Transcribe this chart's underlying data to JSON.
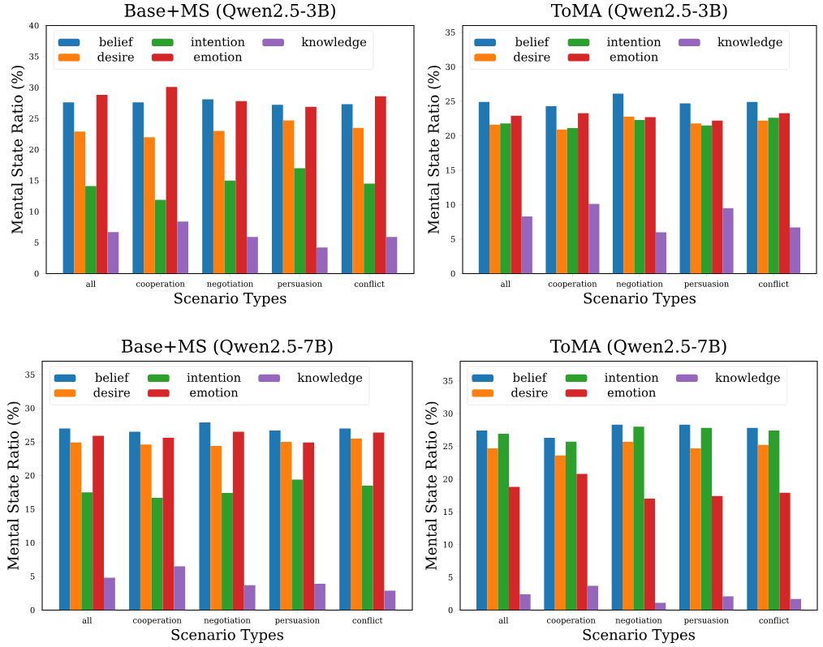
{
  "chart_data": [
    {
      "type": "bar",
      "title": "Base+MS (Qwen2.5-3B)",
      "xlabel": "Scenario Types",
      "ylabel": "Mental State Ratio (%)",
      "categories": [
        "all",
        "cooperation",
        "negotiation",
        "persuasion",
        "conflict"
      ],
      "ylim": [
        0,
        40
      ],
      "yticks": [
        0,
        5,
        10,
        15,
        20,
        25,
        30,
        35,
        40
      ],
      "legend": "top left",
      "series": [
        {
          "name": "belief",
          "color": "#1f77b4",
          "values": [
            27.6,
            27.6,
            28.1,
            27.2,
            27.3
          ]
        },
        {
          "name": "desire",
          "color": "#ff7f0e",
          "values": [
            22.9,
            22.0,
            23.0,
            24.7,
            23.5
          ]
        },
        {
          "name": "intention",
          "color": "#2ca02c",
          "values": [
            14.1,
            11.9,
            15.0,
            17.0,
            14.5
          ]
        },
        {
          "name": "emotion",
          "color": "#d62728",
          "values": [
            28.8,
            30.1,
            27.8,
            26.9,
            28.6
          ]
        },
        {
          "name": "knowledge",
          "color": "#9467bd",
          "values": [
            6.7,
            8.4,
            5.9,
            4.2,
            5.9
          ]
        }
      ]
    },
    {
      "type": "bar",
      "title": "ToMA (Qwen2.5-3B)",
      "xlabel": "Scenario Types",
      "ylabel": "Mental State Ratio (%)",
      "categories": [
        "all",
        "cooperation",
        "negotiation",
        "persuasion",
        "conflict"
      ],
      "ylim": [
        0,
        36
      ],
      "yticks": [
        0,
        5,
        10,
        15,
        20,
        25,
        30,
        35
      ],
      "legend": "top left",
      "series": [
        {
          "name": "belief",
          "color": "#1f77b4",
          "values": [
            24.9,
            24.3,
            26.1,
            24.7,
            24.9
          ]
        },
        {
          "name": "desire",
          "color": "#ff7f0e",
          "values": [
            21.6,
            20.9,
            22.8,
            21.8,
            22.2
          ]
        },
        {
          "name": "intention",
          "color": "#2ca02c",
          "values": [
            21.8,
            21.1,
            22.3,
            21.5,
            22.6
          ]
        },
        {
          "name": "emotion",
          "color": "#d62728",
          "values": [
            22.9,
            23.3,
            22.7,
            22.2,
            23.3
          ]
        },
        {
          "name": "knowledge",
          "color": "#9467bd",
          "values": [
            8.3,
            10.1,
            6.0,
            9.5,
            6.7
          ]
        }
      ]
    },
    {
      "type": "bar",
      "title": "Base+MS (Qwen2.5-7B)",
      "xlabel": "Scenario Types",
      "ylabel": "Mental State Ratio (%)",
      "categories": [
        "all",
        "cooperation",
        "negotiation",
        "persuasion",
        "conflict"
      ],
      "ylim": [
        0,
        37
      ],
      "yticks": [
        0,
        5,
        10,
        15,
        20,
        25,
        30,
        35
      ],
      "legend": "top left",
      "series": [
        {
          "name": "belief",
          "color": "#1f77b4",
          "values": [
            27.0,
            26.5,
            27.9,
            26.7,
            27.0
          ]
        },
        {
          "name": "desire",
          "color": "#ff7f0e",
          "values": [
            24.9,
            24.6,
            24.4,
            25.0,
            25.5
          ]
        },
        {
          "name": "intention",
          "color": "#2ca02c",
          "values": [
            17.5,
            16.7,
            17.4,
            19.4,
            18.5
          ]
        },
        {
          "name": "emotion",
          "color": "#d62728",
          "values": [
            25.9,
            25.6,
            26.5,
            24.9,
            26.4
          ]
        },
        {
          "name": "knowledge",
          "color": "#9467bd",
          "values": [
            4.8,
            6.5,
            3.7,
            3.9,
            2.9
          ]
        }
      ]
    },
    {
      "type": "bar",
      "title": "ToMA (Qwen2.5-7B)",
      "xlabel": "Scenario Types",
      "ylabel": "Mental State Ratio (%)",
      "categories": [
        "all",
        "cooperation",
        "negotiation",
        "persuasion",
        "conflict"
      ],
      "ylim": [
        0,
        38
      ],
      "yticks": [
        0,
        5,
        10,
        15,
        20,
        25,
        30,
        35
      ],
      "legend": "top left",
      "series": [
        {
          "name": "belief",
          "color": "#1f77b4",
          "values": [
            27.4,
            26.3,
            28.3,
            28.3,
            27.8
          ]
        },
        {
          "name": "desire",
          "color": "#ff7f0e",
          "values": [
            24.7,
            23.6,
            25.7,
            24.7,
            25.2
          ]
        },
        {
          "name": "intention",
          "color": "#2ca02c",
          "values": [
            26.9,
            25.7,
            28.0,
            27.8,
            27.4
          ]
        },
        {
          "name": "emotion",
          "color": "#d62728",
          "values": [
            18.8,
            20.8,
            17.0,
            17.4,
            17.9
          ]
        },
        {
          "name": "knowledge",
          "color": "#9467bd",
          "values": [
            2.4,
            3.7,
            1.1,
            2.1,
            1.7
          ]
        }
      ]
    }
  ]
}
